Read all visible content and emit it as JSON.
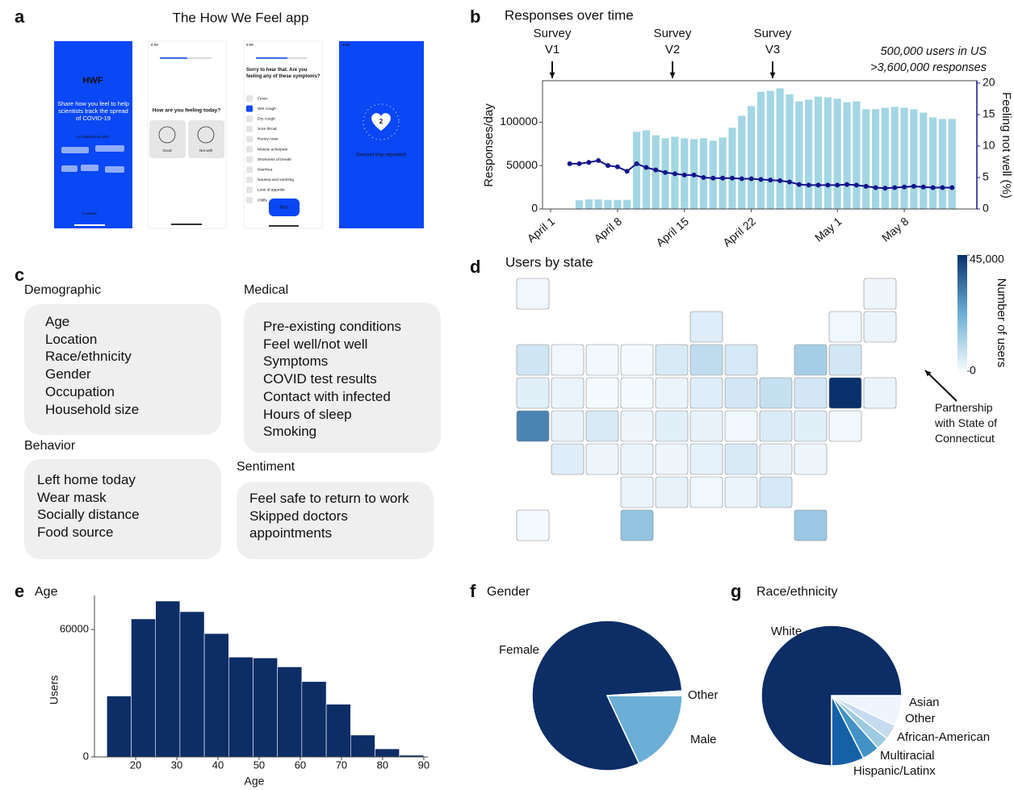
{
  "panel_labels": [
    "a",
    "b",
    "c",
    "d",
    "e",
    "f",
    "g"
  ],
  "app": {
    "title": "The How We Feel app",
    "welcome": {
      "logo": "HWF",
      "message": "Share how you feel to help scientists track the spread of COVID-19",
      "partners": "In collaboration with",
      "button": "Continue"
    },
    "question": {
      "time": "8:08",
      "prompt": "How are you feeling today?",
      "options": [
        "Good",
        "Not well"
      ]
    },
    "symptoms": {
      "time": "8:08",
      "prompt": "Sorry to hear that. Are you feeling any of these symptoms?",
      "items": [
        "Fever",
        "Wet cough",
        "Dry cough",
        "Sore throat",
        "Runny nose",
        "Muscle ache/pain",
        "Shortness of breath",
        "Diarrhea",
        "Nausea and vomiting",
        "Loss of appetite",
        "Chills"
      ],
      "button": "Next"
    },
    "done": {
      "time": "8:08",
      "day": "2",
      "message": "Second day reported!"
    }
  },
  "survey_fields": {
    "groups": [
      {
        "title": "Demographic",
        "items": [
          "Age",
          "Location",
          "Race/ethnicity",
          "Gender",
          "Occupation",
          "Household size"
        ]
      },
      {
        "title": "Medical",
        "items": [
          "Pre-existing conditions",
          "Feel well/not well",
          "Symptoms",
          "COVID test results",
          "Contact with infected",
          "Hours of sleep",
          "Smoking"
        ]
      },
      {
        "title": "Behavior",
        "items": [
          "Left home today",
          "Wear mask",
          "Socially distance",
          "Food source"
        ]
      },
      {
        "title": "Sentiment",
        "items": [
          "Feel safe to return to work",
          "Skipped doctors appointments"
        ]
      }
    ]
  },
  "chart_data": [
    {
      "type": "bar_line",
      "title": "Responses over time",
      "ylabel": "Responses/day",
      "y2label": "Feeling not well (%)",
      "categories": [
        "April 1",
        null,
        null,
        null,
        null,
        null,
        null,
        "April 8",
        null,
        null,
        null,
        null,
        null,
        null,
        "April 15",
        null,
        null,
        null,
        null,
        null,
        null,
        "April 22",
        null,
        null,
        null,
        null,
        null,
        null,
        null,
        null,
        "May 1",
        null,
        null,
        null,
        null,
        null,
        null,
        "May 8",
        null,
        null,
        null,
        null,
        null
      ],
      "series": [
        {
          "color": "#a3d6e4",
          "values": [
            null,
            null,
            null,
            10000,
            11000,
            11000,
            10500,
            10500,
            10500,
            88900,
            90700,
            85000,
            81500,
            83300,
            81500,
            80500,
            81500,
            78700,
            82400,
            93500,
            107400,
            118500,
            135000,
            136000,
            139000,
            132000,
            124000,
            126000,
            129500,
            128700,
            127000,
            123000,
            124000,
            115000,
            115000,
            116600,
            117600,
            116600,
            115000,
            111000,
            105500,
            103700,
            103700
          ]
        },
        {
          "color": "#14148c",
          "axis": "y2",
          "values": [
            null,
            null,
            7.2,
            7.2,
            7.4,
            7.7,
            6.9,
            6.7,
            6.0,
            7.2,
            6.6,
            6.2,
            5.8,
            5.6,
            5.4,
            5.4,
            5.0,
            4.9,
            4.9,
            4.9,
            4.8,
            4.8,
            4.7,
            4.6,
            4.5,
            4.3,
            3.9,
            3.8,
            3.8,
            3.8,
            3.8,
            3.9,
            3.8,
            3.6,
            3.4,
            3.3,
            3.4,
            3.5,
            3.6,
            3.5,
            3.4,
            3.4,
            3.4
          ]
        }
      ],
      "ylim": [
        0,
        145000
      ],
      "yticks": [
        0,
        50000,
        100000
      ],
      "y2lim": [
        0,
        20
      ],
      "y2ticks": [
        0,
        5,
        10,
        15,
        20
      ],
      "annotations": [
        "Survey V1",
        "Survey V2",
        "Survey V3"
      ],
      "notes": [
        "500,000 users in US",
        ">3,600,000 responses"
      ]
    },
    {
      "type": "choropleth",
      "title": "Users by state",
      "values": [
        1000,
        1500,
        4000,
        1200,
        2000,
        6500,
        1200,
        800,
        500,
        5000,
        9000,
        5500,
        13000,
        6000,
        3500,
        2000,
        300,
        400,
        2000,
        4000,
        6000,
        8000,
        6000,
        45000,
        2000,
        30000,
        2500,
        5000,
        1500,
        3500,
        2500,
        1000,
        4500,
        3500,
        800,
        4000,
        1500,
        2000,
        1500,
        3000,
        5000,
        2500,
        1500,
        2000,
        2500,
        1200,
        2000,
        5500,
        500,
        16000,
        15000
      ],
      "colorbar": {
        "label": "Number of users",
        "lim": [
          0,
          45000
        ],
        "ticks": [
          0,
          {
            "value": 45000,
            "label": "45,000"
          }
        ],
        "colors": [
          "#f7fbff",
          "#6baed6",
          "#08306b"
        ]
      },
      "annotation": "Partnership with State of Connecticut"
    },
    {
      "type": "histogram",
      "title": "Age",
      "xlabel": "Age",
      "ylabel": "Users",
      "bins": [
        13,
        18.92,
        24.85,
        30.77,
        36.69,
        42.62,
        48.54,
        54.46,
        60.38,
        66.31,
        72.23,
        78.15,
        84.08,
        90
      ],
      "values": [
        28700,
        65000,
        73400,
        68400,
        58100,
        47000,
        46600,
        42400,
        35500,
        24800,
        10300,
        3800,
        800
      ],
      "color": "#0c2d66",
      "xlim": [
        10,
        91
      ],
      "xticks": [
        20,
        30,
        40,
        50,
        60,
        70,
        80,
        90
      ],
      "ylim": [
        0,
        76000
      ],
      "yticks": [
        0,
        60000
      ]
    },
    {
      "type": "pie",
      "title": "Gender",
      "categories": [
        "Male",
        "Female",
        "Other"
      ],
      "values": [
        18,
        81,
        1
      ],
      "colors": [
        "#6baed6",
        "#0c2d66",
        "#f4f8fc"
      ]
    },
    {
      "type": "pie",
      "title": "Race/ethnicity",
      "categories": [
        "Asian",
        "Other",
        "African-American",
        "Multiracial",
        "Hispanic/Latinx",
        "White"
      ],
      "values": [
        7,
        3.5,
        3,
        4,
        7.5,
        75
      ],
      "colors": [
        "#eef5fc",
        "#c6dbef",
        "#9ecae1",
        "#4292c6",
        "#1561a8",
        "#0c2d66"
      ]
    }
  ]
}
